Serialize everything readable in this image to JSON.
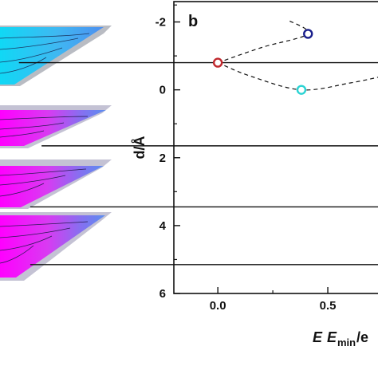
{
  "panel_label": "b",
  "chart_data": {
    "type": "scatter",
    "ylabel": "d/Å",
    "xlabel_prefix": "E",
    "xlabel_main": "E",
    "xlabel_sub": "min",
    "xlabel_suffix": "/e",
    "xlim": [
      -0.2,
      0.75
    ],
    "ylim": [
      -2.6,
      6
    ],
    "y_inverted": true,
    "x_ticks": [
      0.0,
      0.5
    ],
    "x_tick_labels": [
      "0.0",
      "0.5"
    ],
    "y_ticks": [
      -2,
      0,
      2,
      4,
      6
    ],
    "y_tick_labels": [
      "-2",
      "0",
      "2",
      "4",
      "6"
    ],
    "grid": false,
    "points": [
      {
        "x": 0.0,
        "y": -0.8,
        "color": "#c0282d"
      },
      {
        "x": 0.41,
        "y": -1.65,
        "color": "#1a1f8c"
      },
      {
        "x": 0.38,
        "y": 0.0,
        "color": "#2ad3d3"
      }
    ],
    "dashed_curves": [
      {
        "points": [
          [
            0.0,
            -0.8
          ],
          [
            0.2,
            -1.25
          ],
          [
            0.41,
            -1.65
          ],
          [
            0.32,
            -2.05
          ]
        ]
      },
      {
        "points": [
          [
            0.0,
            -0.8
          ],
          [
            0.15,
            -0.4
          ],
          [
            0.38,
            0.0
          ],
          [
            0.6,
            -0.2
          ],
          [
            0.75,
            -0.4
          ]
        ]
      }
    ],
    "reference_lines": [
      {
        "y": -0.8,
        "x_start": 0.05
      },
      {
        "y": 1.65,
        "x_start": 0.11
      },
      {
        "y": 3.45,
        "x_start": 0.08
      },
      {
        "y": 5.15,
        "x_start": 0.08
      }
    ]
  }
}
